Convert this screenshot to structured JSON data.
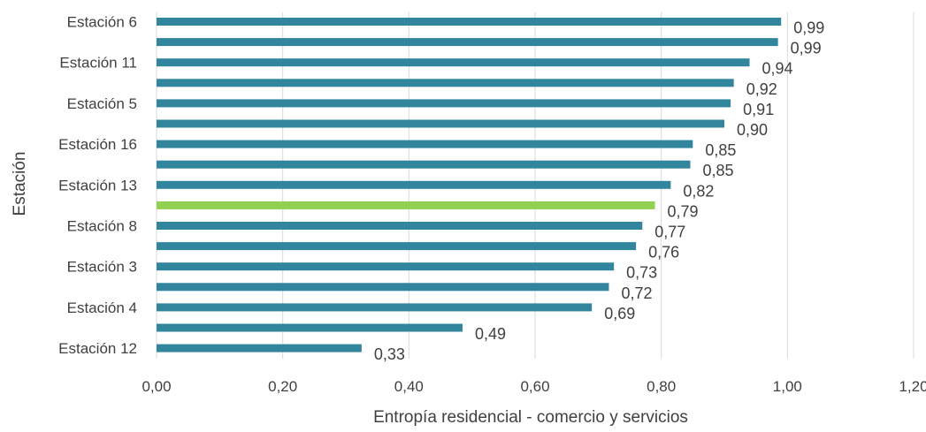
{
  "chart_data": {
    "type": "bar",
    "orientation": "horizontal",
    "xlabel": "Entropía residencial - comercio y servicios",
    "ylabel": "Estación",
    "xlim": [
      0,
      1.2
    ],
    "x_ticks": [
      "0,00",
      "0,20",
      "0,40",
      "0,60",
      "0,80",
      "1,00",
      "1,20"
    ],
    "x_tick_values": [
      0,
      0.2,
      0.4,
      0.6,
      0.8,
      1.0,
      1.2
    ],
    "grid": "vertical",
    "legend": "none",
    "default_color": "#31859C",
    "highlight_color": "#92D050",
    "bars": [
      {
        "category": "Estación 6",
        "value": 0.99,
        "label": "0,99",
        "highlight": false
      },
      {
        "category": "",
        "value": 0.985,
        "label": "0,99",
        "highlight": false
      },
      {
        "category": "Estación 11",
        "value": 0.94,
        "label": "0,94",
        "highlight": false
      },
      {
        "category": "",
        "value": 0.915,
        "label": "0,92",
        "highlight": false
      },
      {
        "category": "Estación 5",
        "value": 0.91,
        "label": "0,91",
        "highlight": false
      },
      {
        "category": "",
        "value": 0.9,
        "label": "0,90",
        "highlight": false
      },
      {
        "category": "Estación 16",
        "value": 0.85,
        "label": "0,85",
        "highlight": false
      },
      {
        "category": "",
        "value": 0.846,
        "label": "0,85",
        "highlight": false
      },
      {
        "category": "Estación 13",
        "value": 0.815,
        "label": "0,82",
        "highlight": false
      },
      {
        "category": "",
        "value": 0.79,
        "label": "0,79",
        "highlight": true
      },
      {
        "category": "Estación 8",
        "value": 0.77,
        "label": "0,77",
        "highlight": false
      },
      {
        "category": "",
        "value": 0.76,
        "label": "0,76",
        "highlight": false
      },
      {
        "category": "Estación 3",
        "value": 0.725,
        "label": "0,73",
        "highlight": false
      },
      {
        "category": "",
        "value": 0.717,
        "label": "0,72",
        "highlight": false
      },
      {
        "category": "Estación 4",
        "value": 0.69,
        "label": "0,69",
        "highlight": false
      },
      {
        "category": "",
        "value": 0.485,
        "label": "0,49",
        "highlight": false
      },
      {
        "category": "Estación 12",
        "value": 0.325,
        "label": "0,33",
        "highlight": false
      }
    ]
  }
}
